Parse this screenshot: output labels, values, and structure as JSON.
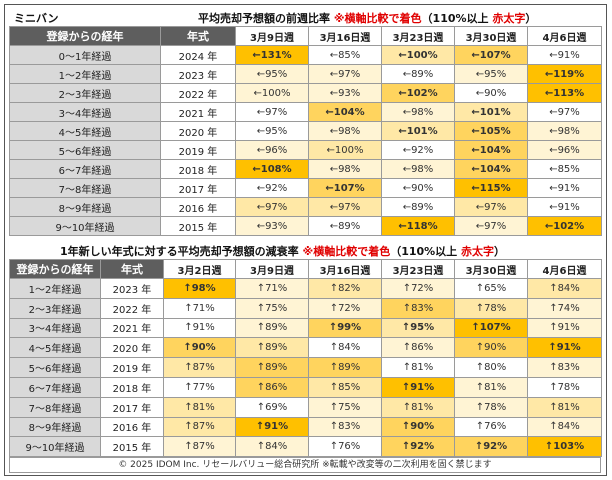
{
  "brand": "ミニバン",
  "table1": {
    "title": "平均売却予想額の前週比率",
    "note_prefix": "※横軸比較で着色",
    "note_paren_open": "（110%以上",
    "note_red": "赤太字",
    "note_paren_close": "）",
    "col_label": "登録からの経年",
    "col_year": "年式",
    "dates": [
      "3月9日週",
      "3月16日週",
      "3月23日週",
      "3月30日週",
      "4月6日週"
    ],
    "rows": [
      {
        "label": "0～1年経過",
        "year": "2024 年",
        "cells": [
          [
            "←131%",
            4,
            "r"
          ],
          [
            "←85%",
            0,
            "d"
          ],
          [
            "←100%",
            2,
            "b"
          ],
          [
            "←107%",
            3,
            "b"
          ],
          [
            "←91%",
            0,
            "n"
          ]
        ]
      },
      {
        "label": "1～2年経過",
        "year": "2023 年",
        "cells": [
          [
            "←95%",
            1,
            "n"
          ],
          [
            "←97%",
            1,
            "n"
          ],
          [
            "←89%",
            0,
            "d"
          ],
          [
            "←95%",
            1,
            "n"
          ],
          [
            "←119%",
            4,
            "r"
          ]
        ]
      },
      {
        "label": "2～3年経過",
        "year": "2022 年",
        "cells": [
          [
            "←100%",
            1,
            "n"
          ],
          [
            "←93%",
            1,
            "n"
          ],
          [
            "←102%",
            3,
            "b"
          ],
          [
            "←90%",
            0,
            "d"
          ],
          [
            "←113%",
            4,
            "r"
          ]
        ]
      },
      {
        "label": "3～4年経過",
        "year": "2021 年",
        "cells": [
          [
            "←97%",
            0,
            "n"
          ],
          [
            "←104%",
            3,
            "b"
          ],
          [
            "←98%",
            1,
            "n"
          ],
          [
            "←101%",
            2,
            "b"
          ],
          [
            "←97%",
            0,
            "n"
          ]
        ]
      },
      {
        "label": "4～5年経過",
        "year": "2020 年",
        "cells": [
          [
            "←95%",
            0,
            "n"
          ],
          [
            "←98%",
            1,
            "n"
          ],
          [
            "←101%",
            2,
            "b"
          ],
          [
            "←105%",
            3,
            "b"
          ],
          [
            "←98%",
            1,
            "n"
          ]
        ]
      },
      {
        "label": "5～6年経過",
        "year": "2019 年",
        "cells": [
          [
            "←96%",
            1,
            "n"
          ],
          [
            "←100%",
            2,
            "n"
          ],
          [
            "←92%",
            0,
            "n"
          ],
          [
            "←104%",
            3,
            "b"
          ],
          [
            "←96%",
            1,
            "n"
          ]
        ]
      },
      {
        "label": "6～7年経過",
        "year": "2018 年",
        "cells": [
          [
            "←108%",
            4,
            "b"
          ],
          [
            "←98%",
            1,
            "n"
          ],
          [
            "←98%",
            1,
            "n"
          ],
          [
            "←104%",
            3,
            "b"
          ],
          [
            "←85%",
            0,
            "d"
          ]
        ]
      },
      {
        "label": "7～8年経過",
        "year": "2017 年",
        "cells": [
          [
            "←92%",
            0,
            "n"
          ],
          [
            "←107%",
            3,
            "b"
          ],
          [
            "←90%",
            0,
            "d"
          ],
          [
            "←115%",
            4,
            "r"
          ],
          [
            "←91%",
            0,
            "n"
          ]
        ]
      },
      {
        "label": "8～9年経過",
        "year": "2016 年",
        "cells": [
          [
            "←97%",
            2,
            "n"
          ],
          [
            "←97%",
            2,
            "n"
          ],
          [
            "←89%",
            0,
            "d"
          ],
          [
            "←97%",
            2,
            "n"
          ],
          [
            "←91%",
            0,
            "n"
          ]
        ]
      },
      {
        "label": "9～10年経過",
        "year": "2015 年",
        "cells": [
          [
            "←93%",
            1,
            "n"
          ],
          [
            "←89%",
            0,
            "d"
          ],
          [
            "←118%",
            4,
            "r"
          ],
          [
            "←97%",
            1,
            "n"
          ],
          [
            "←102%",
            4,
            "b"
          ]
        ]
      }
    ]
  },
  "table2": {
    "title": "1年新しい年式に対する平均売却予想額の減衰率",
    "note_prefix": "※横軸比較で着色",
    "note_paren_open": "（110%以上",
    "note_red": "赤太字",
    "note_paren_close": "）",
    "col_label": "登録からの経年",
    "col_year": "年式",
    "dates": [
      "3月2日週",
      "3月9日週",
      "3月16日週",
      "3月23日週",
      "3月30日週",
      "4月6日週"
    ],
    "rows": [
      {
        "label": "1～2年経過",
        "year": "2023 年",
        "cells": [
          [
            "↑98%",
            4,
            "b"
          ],
          [
            "↑71%",
            1,
            "d"
          ],
          [
            "↑82%",
            2,
            "d"
          ],
          [
            "↑72%",
            1,
            "d"
          ],
          [
            "↑65%",
            0,
            "d"
          ],
          [
            "↑84%",
            2,
            "d"
          ]
        ]
      },
      {
        "label": "2～3年経過",
        "year": "2022 年",
        "cells": [
          [
            "↑71%",
            0,
            "d"
          ],
          [
            "↑75%",
            1,
            "d"
          ],
          [
            "↑72%",
            1,
            "d"
          ],
          [
            "↑83%",
            3,
            "d"
          ],
          [
            "↑78%",
            2,
            "d"
          ],
          [
            "↑74%",
            1,
            "n"
          ]
        ]
      },
      {
        "label": "3～4年経過",
        "year": "2021 年",
        "cells": [
          [
            "↑91%",
            0,
            "n"
          ],
          [
            "↑89%",
            1,
            "d"
          ],
          [
            "↑99%",
            3,
            "b"
          ],
          [
            "↑95%",
            2,
            "b"
          ],
          [
            "↑107%",
            4,
            "b"
          ],
          [
            "↑91%",
            1,
            "n"
          ]
        ]
      },
      {
        "label": "4～5年経過",
        "year": "2020 年",
        "cells": [
          [
            "↑90%",
            3,
            "b"
          ],
          [
            "↑89%",
            2,
            "d"
          ],
          [
            "↑84%",
            0,
            "d"
          ],
          [
            "↑86%",
            1,
            "d"
          ],
          [
            "↑90%",
            3,
            "d"
          ],
          [
            "↑91%",
            4,
            "b"
          ]
        ]
      },
      {
        "label": "5～6年経過",
        "year": "2019 年",
        "cells": [
          [
            "↑87%",
            2,
            "d"
          ],
          [
            "↑89%",
            3,
            "d"
          ],
          [
            "↑89%",
            3,
            "d"
          ],
          [
            "↑81%",
            0,
            "d"
          ],
          [
            "↑80%",
            0,
            "d"
          ],
          [
            "↑83%",
            1,
            "d"
          ]
        ]
      },
      {
        "label": "6～7年経過",
        "year": "2018 年",
        "cells": [
          [
            "↑77%",
            0,
            "d"
          ],
          [
            "↑86%",
            3,
            "d"
          ],
          [
            "↑85%",
            2,
            "d"
          ],
          [
            "↑91%",
            4,
            "b"
          ],
          [
            "↑81%",
            1,
            "n"
          ],
          [
            "↑78%",
            0,
            "n"
          ]
        ]
      },
      {
        "label": "7～8年経過",
        "year": "2017 年",
        "cells": [
          [
            "↑81%",
            2,
            "d"
          ],
          [
            "↑69%",
            0,
            "n"
          ],
          [
            "↑75%",
            1,
            "n"
          ],
          [
            "↑81%",
            2,
            "d"
          ],
          [
            "↑78%",
            1,
            "d"
          ],
          [
            "↑81%",
            2,
            "d"
          ]
        ]
      },
      {
        "label": "8～9年経過",
        "year": "2016 年",
        "cells": [
          [
            "↑87%",
            2,
            "d"
          ],
          [
            "↑91%",
            4,
            "b"
          ],
          [
            "↑83%",
            1,
            "n"
          ],
          [
            "↑90%",
            3,
            "b"
          ],
          [
            "↑76%",
            0,
            "n"
          ],
          [
            "↑84%",
            1,
            "d"
          ]
        ]
      },
      {
        "label": "9～10年経過",
        "year": "2015 年",
        "cells": [
          [
            "↑87%",
            1,
            "d"
          ],
          [
            "↑84%",
            1,
            "d"
          ],
          [
            "↑76%",
            0,
            "n"
          ],
          [
            "↑92%",
            3,
            "b"
          ],
          [
            "↑92%",
            3,
            "b"
          ],
          [
            "↑103%",
            4,
            "b"
          ]
        ]
      }
    ]
  },
  "footer": "© 2025 IDOM Inc. リセールバリュー総合研究所 ※転載や改変等の二次利用を固く禁じます"
}
